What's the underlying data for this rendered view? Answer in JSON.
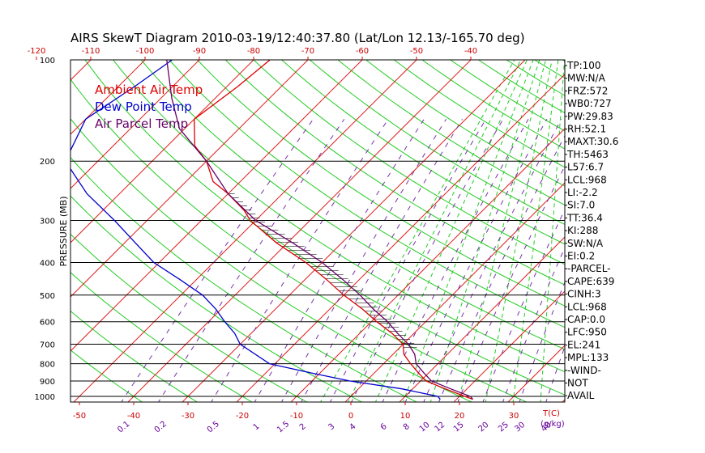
{
  "chart_data": {
    "type": "line",
    "title": "AIRS SkewT Diagram 2010-03-19/12:40:37.80 (Lat/Lon 12.13/-165.70 deg)",
    "ylabel": "PRESSURE (MB)",
    "xlabel": "T(C)",
    "mixing_ratio_unit": "(g/kg)",
    "pressure_ticks": [
      100,
      200,
      300,
      400,
      500,
      600,
      700,
      800,
      900,
      1000
    ],
    "top_temp_ticks": [
      -120,
      -110,
      -100,
      -90,
      -80,
      -70,
      -60,
      -50,
      -40
    ],
    "bottom_temp_ticks": [
      -50,
      -40,
      -30,
      -20,
      -10,
      0,
      10,
      20,
      30
    ],
    "mixing_ratio_ticks": [
      "0.1",
      "0.2",
      "0.5",
      "1",
      "1.5",
      "2",
      "3",
      "4",
      "6",
      "8",
      "10",
      "12",
      "15",
      "20",
      "25",
      "30",
      "40"
    ],
    "legend": [
      {
        "label": "Ambient Air Temp",
        "color": "#dd0000"
      },
      {
        "label": "Dew Point Temp",
        "color": "#0000cc"
      },
      {
        "label": "Air Parcel Temp",
        "color": "#660066"
      }
    ],
    "series": [
      {
        "name": "Ambient Air Temp",
        "color": "#dd0000",
        "points": [
          [
            100,
            -77
          ],
          [
            120,
            -78
          ],
          [
            150,
            -80
          ],
          [
            180,
            -75
          ],
          [
            200,
            -70
          ],
          [
            230,
            -65
          ],
          [
            250,
            -60
          ],
          [
            280,
            -54
          ],
          [
            300,
            -51
          ],
          [
            350,
            -42
          ],
          [
            400,
            -33
          ],
          [
            450,
            -26
          ],
          [
            500,
            -20
          ],
          [
            550,
            -14
          ],
          [
            600,
            -9
          ],
          [
            650,
            -4
          ],
          [
            700,
            0
          ],
          [
            750,
            2
          ],
          [
            800,
            5
          ],
          [
            850,
            8
          ],
          [
            900,
            11
          ],
          [
            950,
            16
          ],
          [
            1000,
            21
          ],
          [
            1020,
            23
          ]
        ]
      },
      {
        "name": "Dew Point Temp",
        "color": "#0000cc",
        "points": [
          [
            100,
            -95
          ],
          [
            120,
            -97
          ],
          [
            150,
            -100
          ],
          [
            200,
            -96
          ],
          [
            250,
            -86
          ],
          [
            300,
            -76
          ],
          [
            350,
            -68
          ],
          [
            400,
            -61
          ],
          [
            450,
            -53
          ],
          [
            500,
            -46
          ],
          [
            550,
            -41
          ],
          [
            600,
            -37
          ],
          [
            650,
            -33
          ],
          [
            700,
            -30
          ],
          [
            800,
            -21
          ],
          [
            850,
            -12
          ],
          [
            900,
            -3
          ],
          [
            950,
            8
          ],
          [
            1000,
            16
          ],
          [
            1020,
            17
          ]
        ]
      },
      {
        "name": "Air Parcel Temp",
        "color": "#660066",
        "points": [
          [
            100,
            -96
          ],
          [
            130,
            -88
          ],
          [
            160,
            -81
          ],
          [
            200,
            -70
          ],
          [
            250,
            -60
          ],
          [
            300,
            -50
          ],
          [
            350,
            -39
          ],
          [
            400,
            -30
          ],
          [
            450,
            -23
          ],
          [
            500,
            -17
          ],
          [
            550,
            -12
          ],
          [
            600,
            -7
          ],
          [
            650,
            -3
          ],
          [
            700,
            1
          ],
          [
            750,
            4
          ],
          [
            800,
            6
          ],
          [
            850,
            9
          ],
          [
            900,
            12
          ],
          [
            950,
            17
          ],
          [
            1000,
            22
          ],
          [
            1020,
            23
          ]
        ]
      }
    ]
  },
  "indices": [
    "TP:100",
    "MW:N/A",
    "FRZ:572",
    "WB0:727",
    "PW:29.83",
    "RH:52.1",
    "MAXT:30.6",
    "TH:5463",
    "L57:6.7",
    "LCL:968",
    "LI:-2.2",
    "SI:7.0",
    "TT:36.4",
    "KI:288",
    "SW:N/A",
    "EI:0.2",
    "-PARCEL-",
    "CAPE:639",
    "CINH:3",
    "LCL:968",
    "CAP:0.0",
    "LFC:950",
    "EL:241",
    "MPL:133",
    "-WIND-",
    "NOT",
    "AVAIL"
  ]
}
